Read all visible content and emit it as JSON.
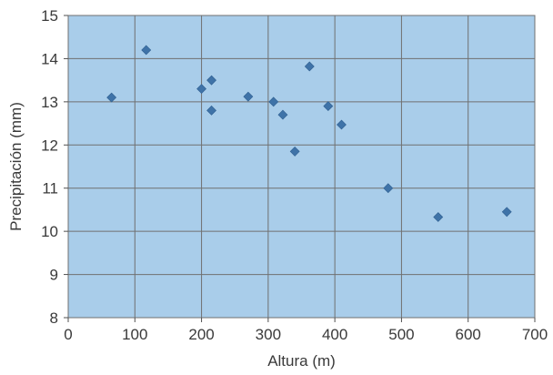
{
  "chart_data": {
    "type": "scatter",
    "title": "",
    "xlabel": "Altura (m)",
    "ylabel": "Precipitación (mm)",
    "xlim": [
      0,
      700
    ],
    "ylim": [
      8,
      15
    ],
    "xticks": [
      "0",
      "100",
      "200",
      "300",
      "400",
      "500",
      "600",
      "700"
    ],
    "yticks": [
      "8",
      "9",
      "10",
      "11",
      "12",
      "13",
      "14",
      "15"
    ],
    "grid": true,
    "legend": "none",
    "marker": "diamond",
    "colors": {
      "plot_background": "#a9cdea",
      "grid": "#707070",
      "marker": "#3f73a8"
    },
    "series": [
      {
        "points": [
          {
            "x": 65,
            "y": 13.1
          },
          {
            "x": 117,
            "y": 14.2
          },
          {
            "x": 200,
            "y": 13.3
          },
          {
            "x": 215,
            "y": 13.5
          },
          {
            "x": 215,
            "y": 12.8
          },
          {
            "x": 270,
            "y": 13.12
          },
          {
            "x": 308,
            "y": 13.0
          },
          {
            "x": 322,
            "y": 12.7
          },
          {
            "x": 340,
            "y": 11.85
          },
          {
            "x": 362,
            "y": 13.82
          },
          {
            "x": 390,
            "y": 12.9
          },
          {
            "x": 410,
            "y": 12.47
          },
          {
            "x": 480,
            "y": 11.0
          },
          {
            "x": 555,
            "y": 10.33
          },
          {
            "x": 658,
            "y": 10.45
          }
        ]
      }
    ]
  }
}
